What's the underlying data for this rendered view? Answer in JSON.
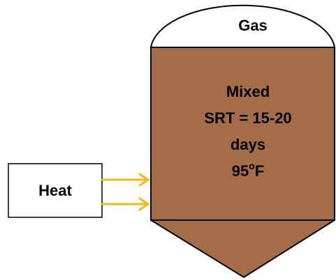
{
  "nodes": {
    "gas": {
      "label": "Gas"
    },
    "digester": {
      "lines": [
        "Mixed",
        "SRT = 15-20",
        "days"
      ],
      "temperature": {
        "value": "95",
        "superscript": "o",
        "unit": "F"
      }
    },
    "heat": {
      "label": "Heat"
    }
  }
}
